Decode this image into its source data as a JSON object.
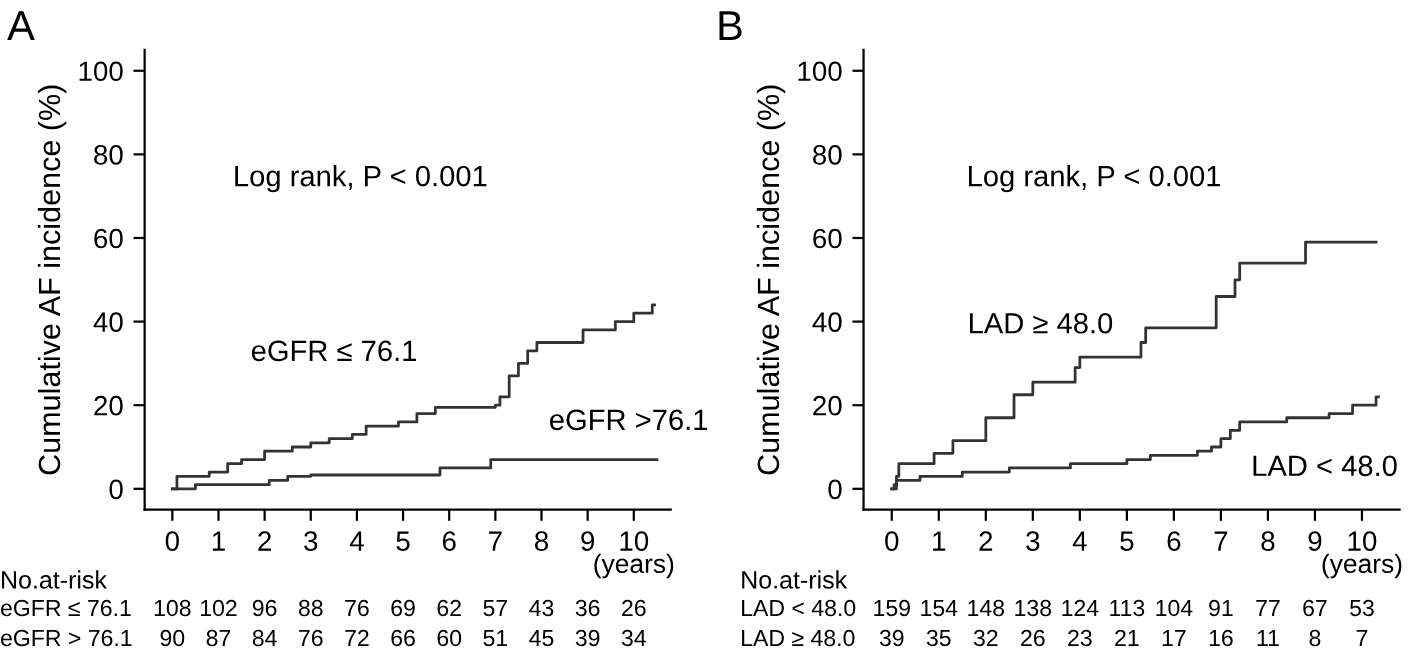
{
  "chart_data": [
    {
      "type": "step",
      "title": "A",
      "ylabel": "Cumulative AF incidence (%)",
      "xlabel": "(years)",
      "xlim": [
        -0.6,
        10.8
      ],
      "ylim": [
        -5,
        105
      ],
      "xticks": [
        0,
        1,
        2,
        3,
        4,
        5,
        6,
        7,
        8,
        9,
        10
      ],
      "yticks": [
        0,
        20,
        40,
        60,
        80,
        100
      ],
      "grid": false,
      "legend": false,
      "series": [
        {
          "name": "eGFR ≤ 76.1",
          "color": "#333333",
          "x": [
            0,
            0.1,
            0.8,
            1.2,
            1.5,
            2.0,
            2.6,
            3.0,
            3.4,
            3.9,
            4.2,
            4.9,
            5.3,
            5.7,
            7.0,
            7.1,
            7.3,
            7.5,
            7.7,
            7.9,
            8.9,
            9.6,
            10.0,
            10.4,
            10.45
          ],
          "values": [
            0,
            3,
            4,
            6,
            7,
            9,
            10,
            11,
            12,
            13,
            15,
            16,
            18,
            19.5,
            20,
            22,
            27,
            30,
            33,
            35,
            38,
            40,
            42,
            44,
            44
          ]
        },
        {
          "name": "eGFR >76.1",
          "color": "#333333",
          "x": [
            0,
            0.5,
            2.1,
            2.5,
            3.0,
            5.8,
            6.9,
            10.5
          ],
          "values": [
            0,
            1,
            2,
            3,
            3.3,
            5,
            7,
            7
          ]
        }
      ],
      "annotations": [
        "Log rank, P < 0.001",
        "No.at-risk",
        "eGFR ≤ 76.1",
        "108",
        "102",
        "96",
        "88",
        "76",
        "69",
        "62",
        "57",
        "43",
        "36",
        "26",
        "eGFR > 76.1",
        "90",
        "87",
        "84",
        "76",
        "72",
        "66",
        "60",
        "51",
        "45",
        "39",
        "34"
      ]
    },
    {
      "type": "step",
      "title": "B",
      "ylabel": "Cumulative AF incidence (%)",
      "xlabel": "(years)",
      "xlim": [
        -0.6,
        10.8
      ],
      "ylim": [
        -5,
        105
      ],
      "xticks": [
        0,
        1,
        2,
        3,
        4,
        5,
        6,
        7,
        8,
        9,
        10
      ],
      "yticks": [
        0,
        20,
        40,
        60,
        80,
        100
      ],
      "grid": false,
      "legend": false,
      "series": [
        {
          "name": "LAD < 48.0",
          "color": "#333333",
          "x": [
            0,
            0.1,
            0.6,
            1.5,
            2.5,
            3.8,
            5.0,
            5.5,
            6.5,
            6.8,
            7.0,
            7.2,
            7.4,
            8.4,
            9.3,
            9.8,
            10.3,
            10.35
          ],
          "values": [
            0,
            2,
            3,
            4,
            5,
            6,
            7,
            8,
            9,
            10,
            12,
            14,
            16,
            17,
            18,
            20,
            22,
            22
          ]
        },
        {
          "name": "LAD ≥ 48.0",
          "color": "#333333",
          "x": [
            0,
            0.05,
            0.1,
            0.15,
            0.9,
            1.3,
            2.0,
            2.6,
            3.0,
            3.9,
            4.0,
            5.3,
            5.4,
            6.9,
            7.3,
            7.4,
            8.8,
            10.3
          ],
          "values": [
            0,
            1,
            3,
            6,
            8.5,
            11.5,
            17,
            22.5,
            25.5,
            29,
            31.5,
            35,
            38.5,
            46,
            50,
            54,
            59,
            59
          ]
        }
      ],
      "annotations": [
        "Log rank, P < 0.001",
        "No.at-risk",
        "LAD < 48.0",
        "159",
        "154",
        "148",
        "138",
        "124",
        "113",
        "104",
        "91",
        "77",
        "67",
        "53",
        "LAD ≥ 48.0",
        "39",
        "35",
        "32",
        "26",
        "23",
        "21",
        "17",
        "16",
        "11",
        "8",
        "7"
      ]
    }
  ]
}
